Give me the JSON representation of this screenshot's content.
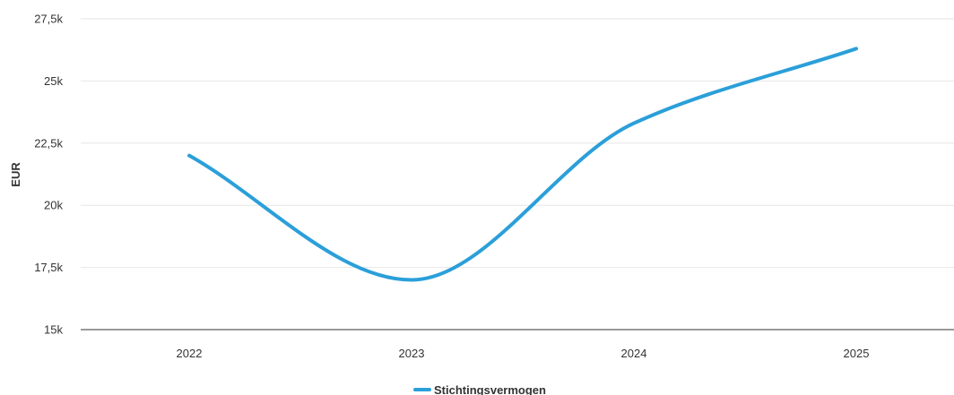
{
  "chart_data": {
    "type": "line",
    "ylabel": "EUR",
    "x": [
      "2022",
      "2023",
      "2024",
      "2025"
    ],
    "ylim": [
      15000,
      27500
    ],
    "yticks": [
      15000,
      17500,
      20000,
      22500,
      25000,
      27500
    ],
    "ytick_labels": [
      "15k",
      "17,5k",
      "20k",
      "22,5k",
      "25k",
      "27,5k"
    ],
    "series": [
      {
        "name": "Stichtingsvermogen",
        "values": [
          22000,
          17000,
          23300,
          26300
        ],
        "color": "#2b9fd9"
      }
    ],
    "grid": true,
    "legend_position": "bottom-center",
    "smooth": true
  }
}
